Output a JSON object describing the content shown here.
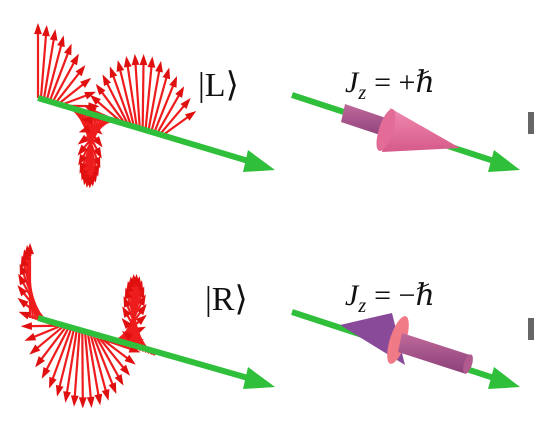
{
  "states": [
    {
      "ket": "|L⟩",
      "jz": {
        "symbol": "J",
        "subscript": "z",
        "rhs": "= +ℏ"
      }
    },
    {
      "ket": "|R⟩",
      "jz": {
        "symbol": "J",
        "subscript": "z",
        "rhs": "= −ℏ"
      }
    }
  ]
}
